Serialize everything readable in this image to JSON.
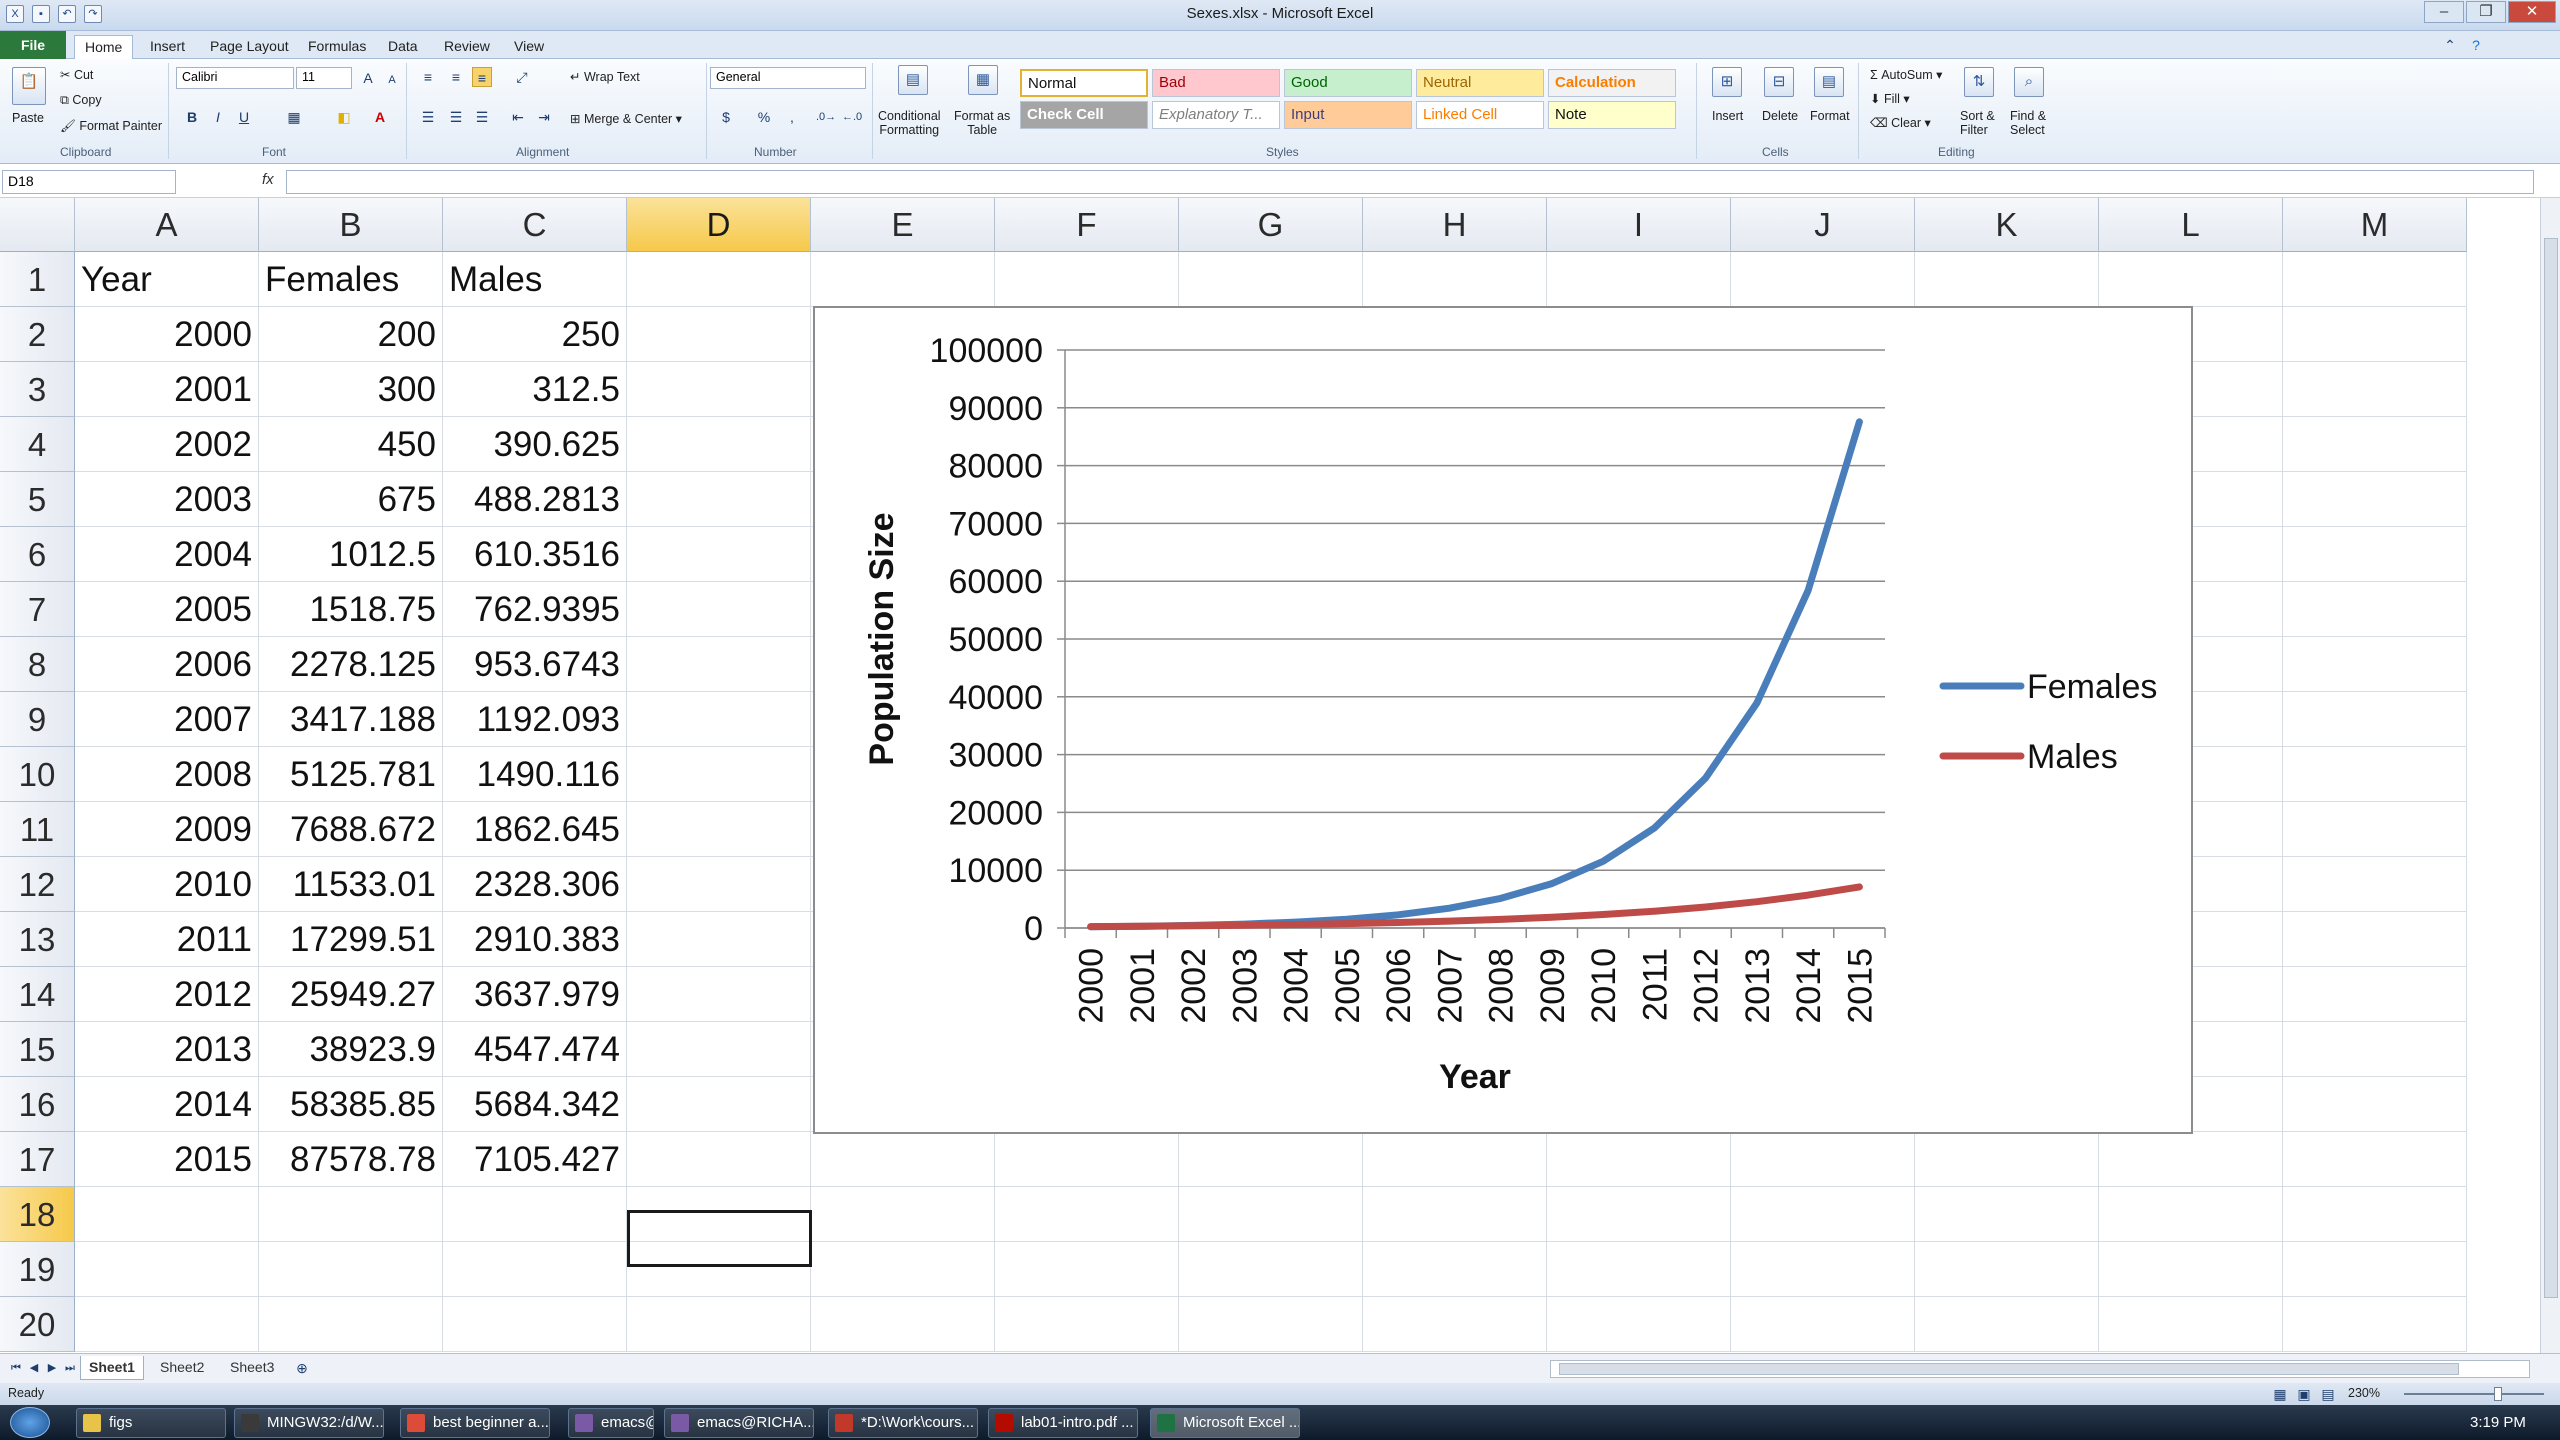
{
  "window": {
    "title": "Sexes.xlsx  -  Microsoft Excel",
    "controls": [
      "–",
      "❐",
      "✕"
    ]
  },
  "ribbon": {
    "tabs": [
      "File",
      "Home",
      "Insert",
      "Page Layout",
      "Formulas",
      "Data",
      "Review",
      "View"
    ],
    "clipboard": {
      "paste": "Paste",
      "cut": "Cut",
      "copy": "Copy",
      "format_painter": "Format Painter",
      "label": "Clipboard"
    },
    "font": {
      "name": "Calibri",
      "size": "11",
      "label": "Font",
      "bold": "B",
      "italic": "I",
      "underline": "U",
      "grow": "A",
      "shrink": "A"
    },
    "alignment": {
      "wrap_text": "Wrap Text",
      "merge_center": "Merge & Center",
      "label": "Alignment"
    },
    "number": {
      "format": "General",
      "label": "Number",
      "currency": "$",
      "percent": "%",
      "comma": ","
    },
    "styles": {
      "conditional_formatting": "Conditional\nFormatting",
      "format_as_table": "Format as\nTable",
      "label": "Styles",
      "cells": [
        {
          "name": "Normal",
          "bg": "#ffffff",
          "fg": "#111111"
        },
        {
          "name": "Bad",
          "bg": "#ffc7ce",
          "fg": "#9c0006"
        },
        {
          "name": "Good",
          "bg": "#c6efce",
          "fg": "#006100"
        },
        {
          "name": "Neutral",
          "bg": "#ffeb9c",
          "fg": "#9c6500"
        },
        {
          "name": "Calculation",
          "bg": "#f2f2f2",
          "fg": "#fa7d00"
        },
        {
          "name": "Check Cell",
          "bg": "#a5a5a5",
          "fg": "#ffffff"
        },
        {
          "name": "Explanatory T...",
          "bg": "#ffffff",
          "fg": "#7f7f7f"
        },
        {
          "name": "Input",
          "bg": "#ffcc99",
          "fg": "#3f3f76"
        },
        {
          "name": "Linked Cell",
          "bg": "#ffffff",
          "fg": "#fa7d00"
        },
        {
          "name": "Note",
          "bg": "#ffffcc",
          "fg": "#111111"
        }
      ]
    },
    "cells_group": {
      "insert": "Insert",
      "delete": "Delete",
      "format": "Format",
      "label": "Cells"
    },
    "editing": {
      "autosum": "AutoSum",
      "fill": "Fill",
      "clear": "Clear",
      "sort_filter": "Sort &\nFilter",
      "find_select": "Find &\nSelect",
      "label": "Editing"
    }
  },
  "formula_bar": {
    "name_box": "D18",
    "fx": "fx",
    "value": ""
  },
  "sheet": {
    "columns": [
      "A",
      "B",
      "C",
      "D",
      "E",
      "F",
      "G",
      "H",
      "I",
      "J",
      "K",
      "L",
      "M"
    ],
    "selected_column": "D",
    "selected_row": 18,
    "active_cell": "D18",
    "rows": [
      1,
      2,
      3,
      4,
      5,
      6,
      7,
      8,
      9,
      10,
      11,
      12,
      13,
      14,
      15,
      16,
      17,
      18,
      19,
      20
    ],
    "header": [
      "Year",
      "Females",
      "Males"
    ],
    "data": [
      [
        "2000",
        "200",
        "250"
      ],
      [
        "2001",
        "300",
        "312.5"
      ],
      [
        "2002",
        "450",
        "390.625"
      ],
      [
        "2003",
        "675",
        "488.2813"
      ],
      [
        "2004",
        "1012.5",
        "610.3516"
      ],
      [
        "2005",
        "1518.75",
        "762.9395"
      ],
      [
        "2006",
        "2278.125",
        "953.6743"
      ],
      [
        "2007",
        "3417.188",
        "1192.093"
      ],
      [
        "2008",
        "5125.781",
        "1490.116"
      ],
      [
        "2009",
        "7688.672",
        "1862.645"
      ],
      [
        "2010",
        "11533.01",
        "2328.306"
      ],
      [
        "2011",
        "17299.51",
        "2910.383"
      ],
      [
        "2012",
        "25949.27",
        "3637.979"
      ],
      [
        "2013",
        "38923.9",
        "4547.474"
      ],
      [
        "2014",
        "58385.85",
        "5684.342"
      ],
      [
        "2015",
        "87578.78",
        "7105.427"
      ]
    ]
  },
  "chart_data": {
    "type": "line",
    "title": "",
    "xlabel": "Year",
    "ylabel": "Population Size",
    "categories": [
      "2000",
      "2001",
      "2002",
      "2003",
      "2004",
      "2005",
      "2006",
      "2007",
      "2008",
      "2009",
      "2010",
      "2011",
      "2012",
      "2013",
      "2014",
      "2015"
    ],
    "ylim": [
      0,
      100000
    ],
    "yticks": [
      0,
      10000,
      20000,
      30000,
      40000,
      50000,
      60000,
      70000,
      80000,
      90000,
      100000
    ],
    "grid": true,
    "legend": "right",
    "series": [
      {
        "name": "Females",
        "color": "#4a7ebb",
        "values": [
          200,
          300,
          450,
          675,
          1012.5,
          1518.75,
          2278.125,
          3417.188,
          5125.781,
          7688.672,
          11533.01,
          17299.51,
          25949.27,
          38923.9,
          58385.85,
          87578.78
        ]
      },
      {
        "name": "Males",
        "color": "#be4b48",
        "values": [
          250,
          312.5,
          390.625,
          488.2813,
          610.3516,
          762.9395,
          953.6743,
          1192.093,
          1490.116,
          1862.645,
          2328.306,
          2910.383,
          3637.979,
          4547.474,
          5684.342,
          7105.427
        ]
      }
    ]
  },
  "sheet_tabs": [
    "Sheet1",
    "Sheet2",
    "Sheet3"
  ],
  "status": {
    "ready": "Ready",
    "zoom": "230%"
  },
  "taskbar": {
    "items": [
      {
        "label": "figs",
        "color": "#e8c34a"
      },
      {
        "label": "MINGW32:/d/W...",
        "color": "#3a3a3a"
      },
      {
        "label": "best beginner a...",
        "color": "#dd4b39"
      },
      {
        "label": "emacs@RICHA...",
        "color": "#7a5aa6"
      },
      {
        "label": "emacs@RICHA...",
        "color": "#7a5aa6"
      },
      {
        "label": "*D:\\Work\\cours...",
        "color": "#c0392b"
      },
      {
        "label": "lab01-intro.pdf ...",
        "color": "#b30b00"
      },
      {
        "label": "Microsoft Excel ...",
        "color": "#1f7244"
      }
    ],
    "clock": "3:19 PM"
  }
}
